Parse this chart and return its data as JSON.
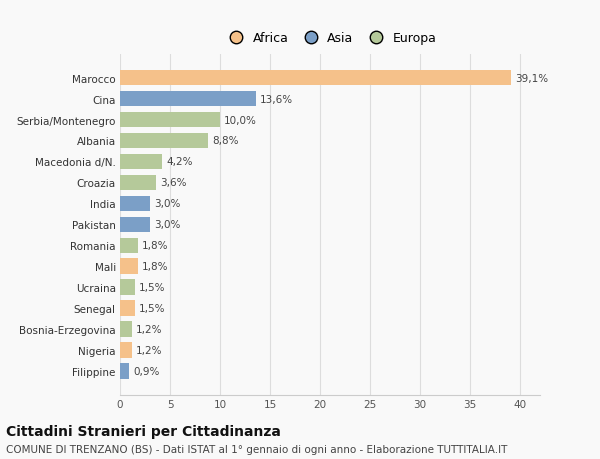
{
  "countries": [
    "Marocco",
    "Cina",
    "Serbia/Montenegro",
    "Albania",
    "Macedonia d/N.",
    "Croazia",
    "India",
    "Pakistan",
    "Romania",
    "Mali",
    "Ucraina",
    "Senegal",
    "Bosnia-Erzegovina",
    "Nigeria",
    "Filippine"
  ],
  "values": [
    39.1,
    13.6,
    10.0,
    8.8,
    4.2,
    3.6,
    3.0,
    3.0,
    1.8,
    1.8,
    1.5,
    1.5,
    1.2,
    1.2,
    0.9
  ],
  "labels": [
    "39,1%",
    "13,6%",
    "10,0%",
    "8,8%",
    "4,2%",
    "3,6%",
    "3,0%",
    "3,0%",
    "1,8%",
    "1,8%",
    "1,5%",
    "1,5%",
    "1,2%",
    "1,2%",
    "0,9%"
  ],
  "continents": [
    "Africa",
    "Asia",
    "Europa",
    "Europa",
    "Europa",
    "Europa",
    "Asia",
    "Asia",
    "Europa",
    "Africa",
    "Europa",
    "Africa",
    "Europa",
    "Africa",
    "Asia"
  ],
  "colors": {
    "Africa": "#F5C18A",
    "Asia": "#7B9FC7",
    "Europa": "#B5C99A"
  },
  "xlim": [
    0,
    42
  ],
  "xticks": [
    0,
    5,
    10,
    15,
    20,
    25,
    30,
    35,
    40
  ],
  "title": "Cittadini Stranieri per Cittadinanza",
  "subtitle": "COMUNE DI TRENZANO (BS) - Dati ISTAT al 1° gennaio di ogni anno - Elaborazione TUTTITALIA.IT",
  "background_color": "#f9f9f9",
  "bar_height": 0.75,
  "label_fontsize": 7.5,
  "axis_fontsize": 7.5,
  "legend_fontsize": 9,
  "title_fontsize": 10,
  "subtitle_fontsize": 7.5
}
